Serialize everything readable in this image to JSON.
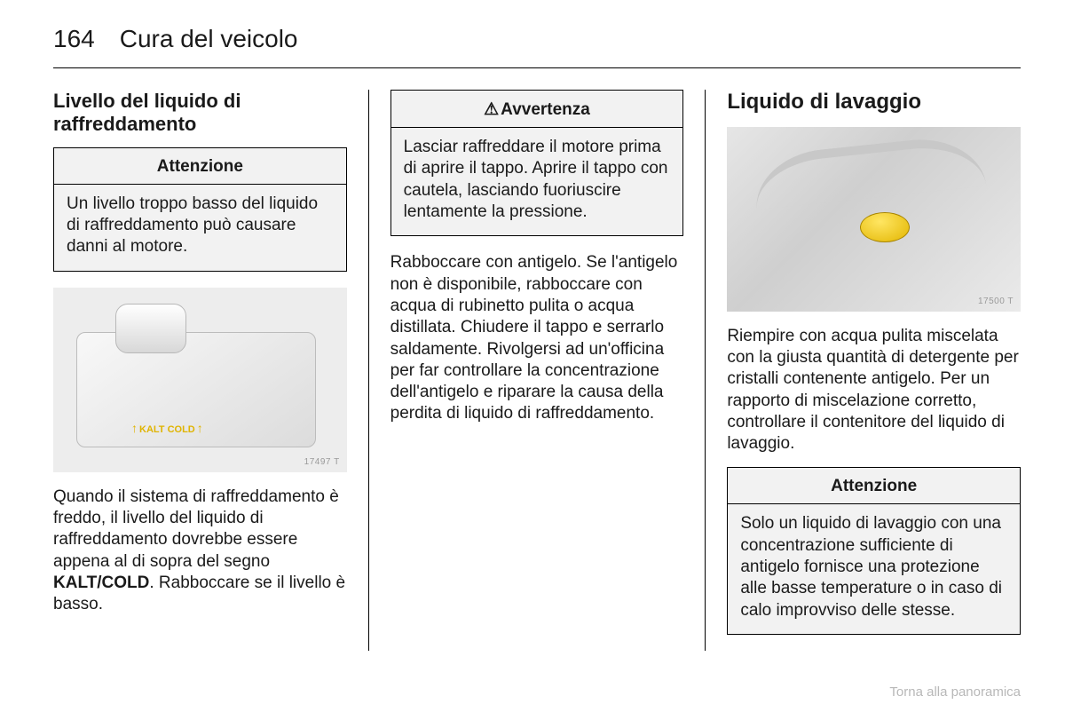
{
  "pageNumber": "164",
  "chapterTitle": "Cura del veicolo",
  "footerLink": "Torna alla panoramica",
  "col1": {
    "heading": "Livello del liquido di raffreddamento",
    "attention": {
      "title": "Attenzione",
      "body": "Un livello troppo basso del liquido di raffreddamento può causare danni al motore."
    },
    "figureLabel": "17497 T",
    "kaltLabel": "KALT\nCOLD",
    "para_pre": "Quando il sistema di raffreddamento è freddo, il livello del liquido di raffreddamento dovrebbe essere appena al di sopra del segno ",
    "kaltBold": "KALT/COLD",
    "para_post": ". Rabboccare se il livello è basso."
  },
  "col2": {
    "warning": {
      "icon": "⚠",
      "title": "Avvertenza",
      "body": "Lasciar raffreddare il motore prima di aprire il tappo. Aprire il tappo con cautela, lasciando fuoriuscire lentamente la pressione."
    },
    "para": "Rabboccare con antigelo. Se l'antigelo non è disponibile, rabboccare con acqua di rubinetto pulita o acqua distillata. Chiudere il tappo e serrarlo saldamente. Rivolgersi ad un'officina per far controllare la concentrazione dell'antigelo e riparare la causa della perdita di liquido di raffreddamento."
  },
  "col3": {
    "heading": "Liquido di lavaggio",
    "figureLabel": "17500 T",
    "para": "Riempire con acqua pulita miscelata con la giusta quantità di detergente per cristalli contenente antigelo. Per un rapporto di miscelazione corretto, controllare il contenitore del liquido di lavaggio.",
    "attention": {
      "title": "Attenzione",
      "body": "Solo un liquido di lavaggio con una concentrazione sufficiente di antigelo fornisce una protezione alle basse temperature o in caso di calo improvviso delle stesse."
    }
  }
}
